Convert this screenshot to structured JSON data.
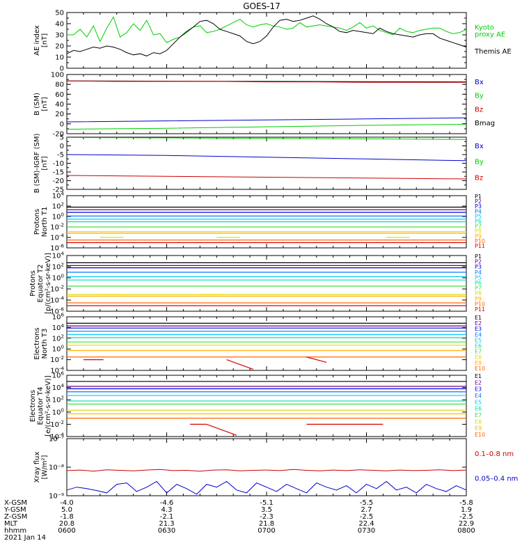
{
  "title": "GOES-17",
  "date_label": "2021 Jan 14",
  "colors": {
    "black": "#000000",
    "green": "#00cc00",
    "red": "#cc0000",
    "blue": "#0000cc",
    "p": [
      "#000000",
      "#6a0080",
      "#0000dd",
      "#0077ff",
      "#00c8ff",
      "#00ddaa",
      "#44dd44",
      "#dddd00",
      "#ffb000",
      "#ff6600",
      "#dd0000"
    ]
  },
  "ephemeris": {
    "rows": [
      {
        "label": "X-GSM",
        "values": [
          "-4.0",
          "-4.6",
          "-5.1",
          "-5.5",
          "-5.8"
        ]
      },
      {
        "label": "Y-GSM",
        "values": [
          "5.0",
          "4.3",
          "3.5",
          "2.7",
          "1.9"
        ]
      },
      {
        "label": "Z-GSM",
        "values": [
          "-1.8",
          "-2.1",
          "-2.3",
          "-2.5",
          "-2.5"
        ]
      },
      {
        "label": "MLT",
        "values": [
          "20.8",
          "21.3",
          "21.8",
          "22.4",
          "22.9"
        ]
      },
      {
        "label": "hhmm",
        "values": [
          "0600",
          "0630",
          "0700",
          "0730",
          "0800"
        ]
      }
    ]
  },
  "chart_data": [
    {
      "type": "line",
      "id": "ae",
      "ylabel": [
        "AE index",
        "[nT]"
      ],
      "ylim": [
        0,
        50
      ],
      "yticks": [
        0,
        10,
        20,
        30,
        40,
        50
      ],
      "legend": [
        [
          "Kyoto",
          "proxy AE"
        ],
        [
          "Themis AE"
        ]
      ],
      "series": [
        {
          "name": "Kyoto proxy AE",
          "color": "green",
          "x": [
            0,
            2,
            4,
            6,
            8,
            10,
            12,
            14,
            16,
            18,
            20,
            22,
            24,
            26,
            28,
            30,
            32,
            34,
            36,
            38,
            40,
            42,
            44,
            46,
            48,
            50,
            52,
            54,
            56,
            58,
            60,
            62,
            64,
            66,
            68,
            70,
            72,
            74,
            76,
            78,
            80,
            82,
            84,
            86,
            88,
            90,
            92,
            94,
            96,
            98,
            100,
            102,
            104,
            106,
            108,
            110,
            112,
            114,
            116,
            118,
            120
          ],
          "values": [
            30,
            30,
            35,
            28,
            38,
            24,
            36,
            46,
            28,
            32,
            40,
            34,
            43,
            30,
            31,
            23,
            26,
            28,
            32,
            37,
            38,
            32,
            33,
            35,
            38,
            41,
            44,
            39,
            37,
            39,
            40,
            38,
            37,
            35,
            36,
            41,
            37,
            38,
            39,
            38,
            37,
            36,
            34,
            37,
            41,
            36,
            38,
            34,
            32,
            30,
            36,
            33,
            32,
            34,
            35,
            36,
            36,
            33,
            31,
            32,
            35
          ]
        },
        {
          "name": "Themis AE",
          "color": "black",
          "x": [
            0,
            2,
            4,
            6,
            8,
            10,
            12,
            14,
            16,
            18,
            20,
            22,
            24,
            26,
            28,
            30,
            32,
            34,
            36,
            38,
            40,
            42,
            44,
            46,
            48,
            50,
            52,
            54,
            56,
            58,
            60,
            62,
            64,
            66,
            68,
            70,
            72,
            74,
            76,
            78,
            80,
            82,
            84,
            86,
            88,
            90,
            92,
            94,
            96,
            98,
            100,
            102,
            104,
            106,
            108,
            110,
            112,
            114,
            116,
            118,
            120
          ],
          "values": [
            13,
            16,
            15,
            17,
            19,
            18,
            20,
            19,
            17,
            14,
            12,
            13,
            11,
            14,
            13,
            16,
            22,
            28,
            33,
            37,
            42,
            43,
            40,
            35,
            33,
            31,
            29,
            24,
            22,
            24,
            29,
            37,
            43,
            44,
            42,
            43,
            45,
            47,
            44,
            40,
            37,
            33,
            32,
            34,
            33,
            32,
            31,
            36,
            33,
            31,
            30,
            29,
            28,
            30,
            31,
            31,
            27,
            25,
            23,
            21,
            19
          ]
        }
      ]
    },
    {
      "type": "line",
      "id": "b",
      "ylabel": [
        "B (SM)",
        "[nT]"
      ],
      "ylim": [
        -20,
        100
      ],
      "yticks": [
        -20,
        0,
        20,
        40,
        60,
        80,
        100
      ],
      "legend": [
        [
          "Bx"
        ],
        [
          "By"
        ],
        [
          "Bz"
        ],
        [
          "Bmag"
        ]
      ],
      "legend_colors": [
        "blue",
        "green",
        "red",
        "black"
      ],
      "series": [
        {
          "name": "Bmag",
          "color": "black",
          "x": [
            0,
            120
          ],
          "values": [
            87,
            85
          ]
        },
        {
          "name": "Bz",
          "color": "red",
          "x": [
            0,
            15,
            30,
            45,
            60,
            75,
            90,
            105,
            120
          ],
          "values": [
            87,
            86,
            86,
            86,
            85,
            85,
            84,
            84,
            84
          ]
        },
        {
          "name": "Bx",
          "color": "blue",
          "x": [
            0,
            30,
            60,
            90,
            120
          ],
          "values": [
            4,
            6,
            8,
            10,
            12
          ]
        },
        {
          "name": "By",
          "color": "green",
          "x": [
            0,
            30,
            60,
            90,
            120
          ],
          "values": [
            -11,
            -9,
            -6,
            -3,
            -1
          ]
        }
      ]
    },
    {
      "type": "line",
      "id": "db",
      "ylabel": [
        "B (SM)-IGRF (SM)",
        "[nT]"
      ],
      "ylim": [
        -25,
        5
      ],
      "yticks": [
        -25,
        -20,
        -15,
        -10,
        -5,
        0,
        5
      ],
      "legend": [
        [
          "Bx"
        ],
        [
          "By"
        ],
        [
          "Bz"
        ]
      ],
      "legend_colors": [
        "blue",
        "green",
        "red"
      ],
      "series": [
        {
          "name": "By",
          "color": "green",
          "x": [
            0,
            30,
            60,
            90,
            120
          ],
          "values": [
            4.8,
            4.6,
            4.3,
            4.0,
            3.7
          ]
        },
        {
          "name": "Bx",
          "color": "blue",
          "x": [
            0,
            30,
            60,
            90,
            120
          ],
          "values": [
            -5,
            -5.5,
            -6.5,
            -7.5,
            -8.5
          ]
        },
        {
          "name": "Bz",
          "color": "red",
          "x": [
            0,
            30,
            60,
            90,
            120
          ],
          "values": [
            -17,
            -17.5,
            -18,
            -18.5,
            -19
          ]
        }
      ]
    },
    {
      "type": "line",
      "id": "pn",
      "log": true,
      "ylabel": [
        "Protons",
        "North T1"
      ],
      "ylim": [
        -6,
        4
      ],
      "yticks": [
        -6,
        -4,
        -2,
        0,
        2,
        4
      ],
      "legend": [
        "P1",
        "P2",
        "P3",
        "P4",
        "P5",
        "P6",
        "P7",
        "P8",
        "P9",
        "P10",
        "P11"
      ],
      "levels": [
        1.8,
        1.3,
        0.8,
        0.1,
        -0.5,
        -1.0,
        -2.0,
        -2.9,
        -3.2,
        -4.5,
        -5.0
      ],
      "segments": [
        [
          10,
          17,
          -4.0
        ],
        [
          45,
          52,
          -4.0
        ],
        [
          96,
          103,
          -4.0
        ]
      ]
    },
    {
      "type": "line",
      "id": "pe",
      "log": true,
      "ylabel": [
        "Protons",
        "Equator T2",
        "[p/(cm²-s-sr-keV)]"
      ],
      "ylim": [
        -6,
        4
      ],
      "yticks": [
        -6,
        -4,
        -2,
        0,
        2,
        4
      ],
      "legend": [
        "P1",
        "P2",
        "P3",
        "P4",
        "P5",
        "P6",
        "P7",
        "P8",
        "P9",
        "P10",
        "P11"
      ],
      "levels": [
        2.7,
        2.2,
        1.8,
        1.0,
        0.2,
        -0.4,
        -1.5,
        -3.0,
        -3.3,
        -4.5,
        -5.0
      ],
      "segments": [
        [
          10,
          17,
          -3.0
        ],
        [
          40,
          47,
          -3.0
        ]
      ]
    },
    {
      "type": "line",
      "id": "en",
      "log": true,
      "ylabel": [
        "Electrons",
        "North T3"
      ],
      "ylim": [
        -4,
        6
      ],
      "yticks": [
        -4,
        -2,
        0,
        2,
        4,
        6
      ],
      "legend": [
        "E1",
        "E2",
        "E3",
        "E4",
        "E5",
        "E6",
        "E7",
        "E8",
        "E9",
        "E10"
      ],
      "levels": [
        4.8,
        4.3,
        3.9,
        3.3,
        2.7,
        2.1,
        1.3,
        0.7,
        -0.3,
        -1.5
      ],
      "segments": [
        [
          5,
          11,
          -2.0
        ]
      ],
      "diag": [
        [
          48,
          -2.0,
          56,
          -3.8
        ],
        [
          72,
          -1.5,
          78,
          -2.5
        ]
      ]
    },
    {
      "type": "line",
      "id": "ee",
      "log": true,
      "ylabel": [
        "Electrons",
        "Equator T4",
        "[e/(cm²-s-sr-keV)]"
      ],
      "ylim": [
        -4,
        6
      ],
      "yticks": [
        -4,
        -2,
        0,
        2,
        4,
        6
      ],
      "legend": [
        "E1",
        "E2",
        "E3",
        "E4",
        "E5",
        "E6",
        "E7",
        "E8",
        "E9",
        "E10"
      ],
      "levels": [
        5.0,
        4.2,
        3.8,
        3.3,
        2.7,
        1.8,
        1.3,
        0.3,
        -0.3,
        -1.0
      ],
      "segments": [
        [
          37,
          42,
          -2.0
        ],
        [
          72,
          95,
          -2.0
        ]
      ],
      "diag": [
        [
          42,
          -2.0,
          51,
          -3.8
        ]
      ]
    },
    {
      "type": "line",
      "id": "xray",
      "log": true,
      "ylabel": [
        "Xray flux",
        "[W/m²]"
      ],
      "ylim": [
        -9,
        -7
      ],
      "ytick_labels": [
        "10⁻⁹",
        "10⁻⁸",
        "10⁻⁷"
      ],
      "yticks": [
        -9,
        -8,
        -7
      ],
      "legend": [
        [
          "0.1–0.8 nm"
        ],
        [
          "0.05–0.4 nm"
        ]
      ],
      "legend_colors": [
        "red",
        "blue"
      ],
      "series": [
        {
          "name": "0.1–0.8 nm",
          "color": "red",
          "x": [
            0,
            4,
            8,
            12,
            16,
            20,
            24,
            28,
            32,
            36,
            40,
            44,
            48,
            52,
            56,
            60,
            64,
            68,
            72,
            76,
            80,
            84,
            88,
            92,
            96,
            100,
            104,
            108,
            112,
            116,
            120
          ],
          "values": [
            -8.12,
            -8.1,
            -8.14,
            -8.09,
            -8.11,
            -8.13,
            -8.1,
            -8.08,
            -8.12,
            -8.11,
            -8.14,
            -8.1,
            -8.09,
            -8.13,
            -8.11,
            -8.1,
            -8.12,
            -8.08,
            -8.11,
            -8.13,
            -8.1,
            -8.12,
            -8.09,
            -8.11,
            -8.13,
            -8.1,
            -8.12,
            -8.11,
            -8.09,
            -8.12,
            -8.1
          ]
        },
        {
          "name": "0.05–0.4 nm",
          "color": "blue",
          "x": [
            0,
            3,
            6,
            9,
            12,
            15,
            18,
            21,
            24,
            27,
            30,
            33,
            36,
            39,
            42,
            45,
            48,
            51,
            54,
            57,
            60,
            63,
            66,
            69,
            72,
            75,
            78,
            81,
            84,
            87,
            90,
            93,
            96,
            99,
            102,
            105,
            108,
            111,
            114,
            117,
            120
          ],
          "values": [
            -8.8,
            -8.7,
            -8.75,
            -8.82,
            -8.9,
            -8.6,
            -8.55,
            -8.85,
            -8.7,
            -8.5,
            -8.9,
            -8.6,
            -8.75,
            -8.95,
            -8.6,
            -8.7,
            -8.5,
            -8.8,
            -8.9,
            -8.55,
            -8.7,
            -8.85,
            -8.6,
            -8.75,
            -8.9,
            -8.55,
            -8.7,
            -8.8,
            -8.65,
            -8.9,
            -8.6,
            -8.75,
            -8.5,
            -8.8,
            -8.7,
            -8.9,
            -8.6,
            -8.75,
            -8.85,
            -8.65,
            -8.8
          ]
        }
      ]
    }
  ]
}
